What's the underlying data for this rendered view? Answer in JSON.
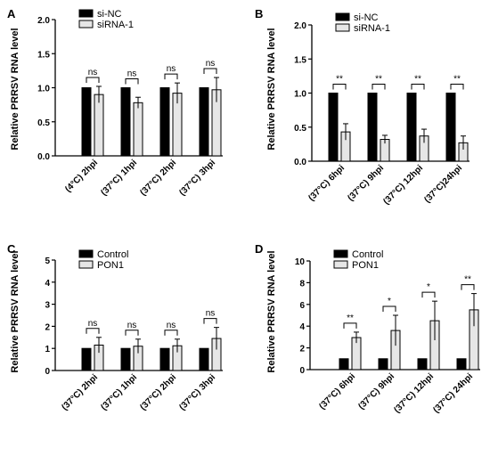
{
  "chart_data": [
    {
      "panel": "A",
      "type": "bar",
      "ylabel": "Relative PRRSV RNA level",
      "ylim": [
        0,
        2.0
      ],
      "yticks": [
        "0.0",
        "0.5",
        "1.0",
        "1.5",
        "2.0"
      ],
      "categories": [
        "(4°C) 2hpi",
        "(37°C) 1hpi",
        "(37°C) 2hpi",
        "(37°C) 3hpi"
      ],
      "series": [
        {
          "name": "si-NC",
          "values": [
            1.0,
            1.0,
            1.0,
            1.0
          ],
          "errors": [
            0,
            0,
            0,
            0
          ]
        },
        {
          "name": "siRNA-1",
          "values": [
            0.9,
            0.78,
            0.92,
            0.97
          ],
          "errors": [
            0.12,
            0.08,
            0.15,
            0.18
          ]
        }
      ],
      "annotations": [
        "ns",
        "ns",
        "ns",
        "ns"
      ],
      "legend": "top-left"
    },
    {
      "panel": "B",
      "type": "bar",
      "ylabel": "Relative PRRSV RNA level",
      "ylim": [
        0,
        2.0
      ],
      "yticks": [
        "0.0",
        "0.5",
        "1.0",
        "1.5",
        "2.0"
      ],
      "categories": [
        "(37°C) 6hpi",
        "(37°C) 9hpi",
        "(37°C) 12hpi",
        "(37°C)24hpi"
      ],
      "series": [
        {
          "name": "si-NC",
          "values": [
            1.0,
            1.0,
            1.0,
            1.0
          ],
          "errors": [
            0,
            0,
            0,
            0
          ]
        },
        {
          "name": "siRNA-1",
          "values": [
            0.43,
            0.32,
            0.37,
            0.27
          ],
          "errors": [
            0.12,
            0.06,
            0.1,
            0.1
          ]
        }
      ],
      "annotations": [
        "**",
        "**",
        "**",
        "**"
      ],
      "legend": "top-left"
    },
    {
      "panel": "C",
      "type": "bar",
      "ylabel": "Relative  PRRSV RNA level",
      "ylim": [
        0,
        5
      ],
      "yticks": [
        "0",
        "1",
        "2",
        "3",
        "4",
        "5"
      ],
      "categories": [
        "(37°C) 2hpi",
        "(37°C) 1hpi",
        "(37°C) 2hpi",
        "(37°C) 3hpi"
      ],
      "series": [
        {
          "name": "Control",
          "values": [
            1.0,
            1.0,
            1.0,
            1.0
          ],
          "errors": [
            0,
            0,
            0,
            0
          ]
        },
        {
          "name": "PON1",
          "values": [
            1.15,
            1.1,
            1.12,
            1.45
          ],
          "errors": [
            0.35,
            0.32,
            0.3,
            0.5
          ]
        }
      ],
      "annotations": [
        "ns",
        "ns",
        "ns",
        "ns"
      ],
      "legend": "top-left"
    },
    {
      "panel": "D",
      "type": "bar",
      "ylabel": "Relative PRRSV RNA level",
      "ylim": [
        0,
        10
      ],
      "yticks": [
        "0",
        "2",
        "4",
        "6",
        "8",
        "10"
      ],
      "categories": [
        "(37°C) 6hpi",
        "(37°C) 9hpi",
        "(37°C) 12hpi",
        "(37°C) 24hpi"
      ],
      "series": [
        {
          "name": "Control",
          "values": [
            1.0,
            1.0,
            1.0,
            1.0
          ],
          "errors": [
            0,
            0,
            0,
            0
          ]
        },
        {
          "name": "PON1",
          "values": [
            2.95,
            3.6,
            4.5,
            5.5
          ],
          "errors": [
            0.5,
            1.4,
            1.8,
            1.5
          ]
        }
      ],
      "annotations": [
        "**",
        "*",
        "*",
        "**"
      ],
      "legend": "top-left"
    }
  ],
  "colors": {
    "series1": "#000000",
    "series2": "#e6e6e6",
    "axis": "#000000"
  }
}
